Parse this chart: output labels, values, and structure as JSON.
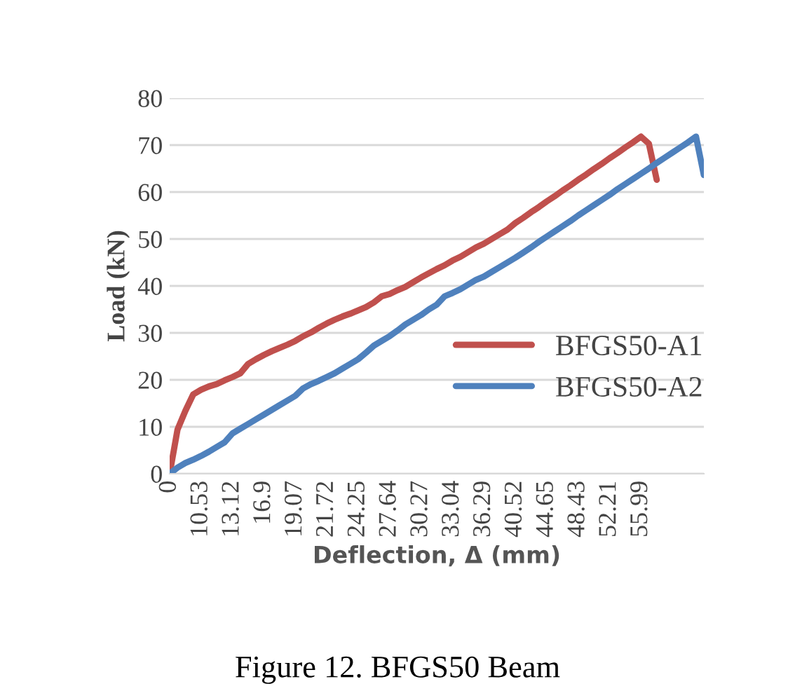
{
  "chart_data": {
    "type": "line",
    "xlabel": "Deflection, Δ (mm)",
    "ylabel": "Load (kN)",
    "categories": [
      "0",
      null,
      null,
      null,
      "10.53",
      null,
      null,
      null,
      "13.12",
      null,
      null,
      null,
      "16.9",
      null,
      null,
      null,
      "19.07",
      null,
      null,
      null,
      "21.72",
      null,
      null,
      null,
      "24.25",
      null,
      null,
      null,
      "27.64",
      null,
      null,
      null,
      "30.27",
      null,
      null,
      null,
      "33.04",
      null,
      null,
      null,
      "36.29",
      null,
      null,
      null,
      "40.52",
      null,
      null,
      null,
      "44.65",
      null,
      null,
      null,
      "48.43",
      null,
      null,
      null,
      "52.21",
      null,
      null,
      null,
      "55.99",
      null,
      null,
      null,
      null,
      null,
      null,
      null,
      null
    ],
    "series": [
      {
        "name": "BFGS50-A1",
        "color": "#c0504d",
        "values": [
          0,
          9.4,
          13.4,
          16.9,
          17.9,
          18.6,
          19.1,
          19.9,
          20.6,
          21.4,
          23.4,
          24.4,
          25.3,
          26.1,
          26.8,
          27.5,
          28.3,
          29.3,
          30.1,
          31.1,
          32.0,
          32.8,
          33.5,
          34.1,
          34.8,
          35.5,
          36.5,
          37.8,
          38.3,
          39.1,
          39.8,
          40.8,
          41.8,
          42.7,
          43.6,
          44.4,
          45.4,
          46.2,
          47.2,
          48.2,
          49.0,
          50.0,
          51.0,
          52.0,
          53.4,
          54.5,
          55.7,
          56.8,
          58.0,
          59.1,
          60.3,
          61.4,
          62.6,
          63.7,
          64.9,
          66.0,
          67.2,
          68.3,
          69.5,
          70.6,
          71.8,
          70.3,
          62.6,
          null,
          null,
          null,
          null,
          null,
          null
        ]
      },
      {
        "name": "BFGS50-A2",
        "color": "#4f81bd",
        "values": [
          0,
          1.3,
          2.3,
          3.0,
          3.8,
          4.7,
          5.7,
          6.7,
          8.6,
          9.6,
          10.6,
          11.6,
          12.6,
          13.6,
          14.6,
          15.6,
          16.6,
          18.2,
          19.1,
          19.8,
          20.6,
          21.4,
          22.4,
          23.4,
          24.4,
          25.8,
          27.3,
          28.3,
          29.3,
          30.5,
          31.8,
          32.8,
          33.8,
          35.0,
          36.0,
          37.8,
          38.5,
          39.3,
          40.3,
          41.3,
          42.0,
          43.0,
          44.0,
          45.0,
          46.0,
          47.1,
          48.2,
          49.4,
          50.5,
          51.6,
          52.7,
          53.8,
          55.0,
          56.1,
          57.2,
          58.3,
          59.4,
          60.6,
          61.7,
          62.8,
          63.9,
          65.0,
          66.2,
          67.3,
          68.4,
          69.5,
          70.6,
          71.8,
          63.6
        ]
      }
    ],
    "ylim": [
      0,
      80
    ],
    "yticks": [
      0,
      10,
      20,
      30,
      40,
      50,
      60,
      70,
      80
    ],
    "grid": "y",
    "legend": "right",
    "marker": "none",
    "line_style": "solid",
    "annotations": [
      "Figure 12. BFGS50 Beam"
    ]
  }
}
